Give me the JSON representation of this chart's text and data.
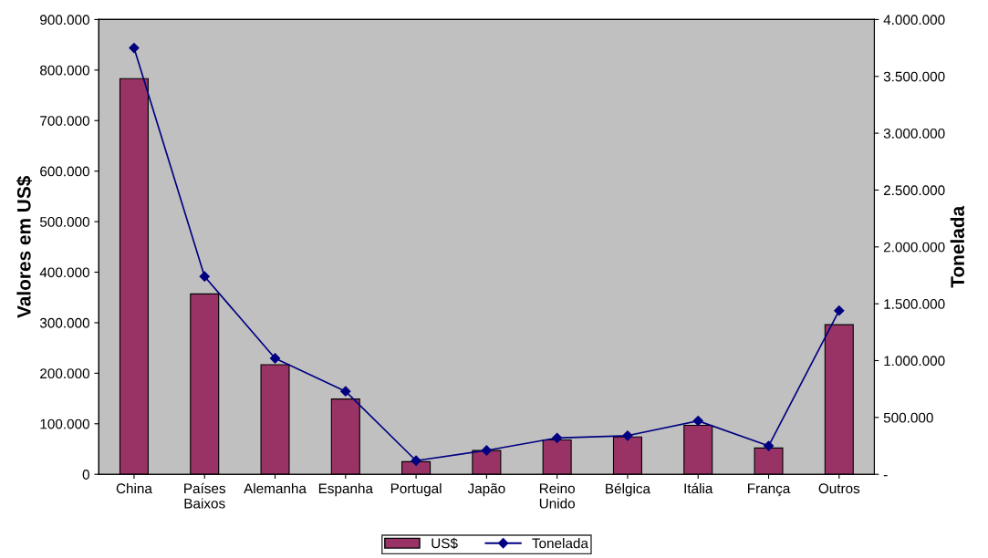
{
  "chart_data": {
    "type": "bar",
    "ylabel": "Valores em US$",
    "y2label": "Tonelada",
    "categories": [
      "China",
      "Países\nBaixos",
      "Alemanha",
      "Espanha",
      "Portugal",
      "Japão",
      "Reino\nUnido",
      "Bélgica",
      "Itália",
      "França",
      "Outros"
    ],
    "series": [
      {
        "name": "US$",
        "color": "#993366",
        "values": [
          783000,
          357000,
          217000,
          149000,
          25000,
          47000,
          68000,
          74000,
          97000,
          52000,
          296000
        ]
      },
      {
        "name": "Tonelada",
        "type": "line",
        "axis": "y2",
        "color": "#000080",
        "marker": "diamond",
        "values": [
          3750000,
          1740000,
          1020000,
          730000,
          120000,
          210000,
          320000,
          340000,
          470000,
          250000,
          1440000
        ]
      }
    ],
    "ylim": [
      0,
      900000
    ],
    "yticks": [
      {
        "value": 0,
        "label": "0"
      },
      {
        "value": 100000,
        "label": "100.000"
      },
      {
        "value": 200000,
        "label": "200.000"
      },
      {
        "value": 300000,
        "label": "300.000"
      },
      {
        "value": 400000,
        "label": "400.000"
      },
      {
        "value": 500000,
        "label": "500.000"
      },
      {
        "value": 600000,
        "label": "600.000"
      },
      {
        "value": 700000,
        "label": "700.000"
      },
      {
        "value": 800000,
        "label": "800.000"
      },
      {
        "value": 900000,
        "label": "900.000"
      }
    ],
    "y2lim": [
      0,
      4000000
    ],
    "y2ticks": [
      {
        "value": 0,
        "label": "-"
      },
      {
        "value": 500000,
        "label": "500.000"
      },
      {
        "value": 1000000,
        "label": "1.000.000"
      },
      {
        "value": 1500000,
        "label": "1.500.000"
      },
      {
        "value": 2000000,
        "label": "2.000.000"
      },
      {
        "value": 2500000,
        "label": "2.500.000"
      },
      {
        "value": 3000000,
        "label": "3.000.000"
      },
      {
        "value": 3500000,
        "label": "3.500.000"
      },
      {
        "value": 4000000,
        "label": "4.000.000"
      }
    ],
    "grid": false,
    "legend": "bottom"
  }
}
